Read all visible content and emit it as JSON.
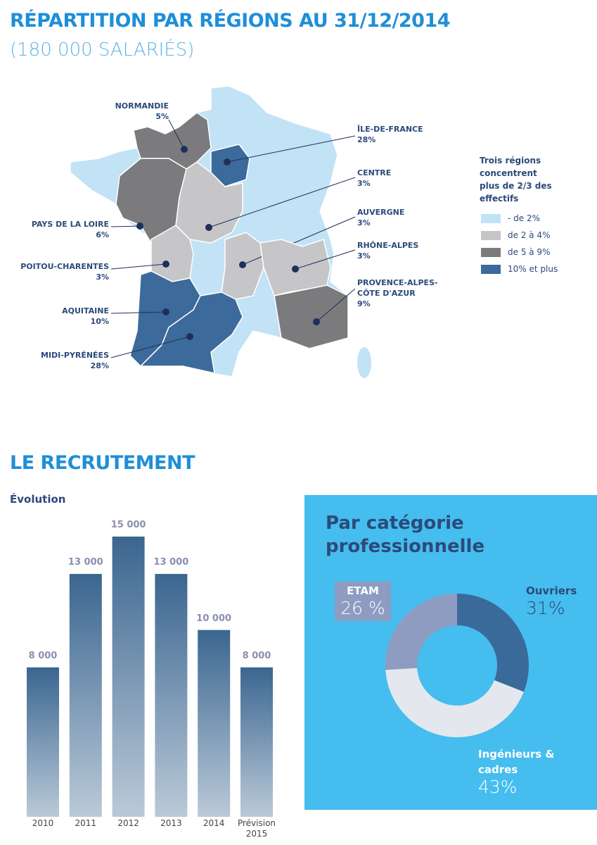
{
  "chart_data": [
    {
      "type": "map",
      "title": "RÉPARTITION PAR RÉGIONS AU 31/12/2014",
      "subtitle": "(180 000 SALARIÉS)",
      "categories": [
        "NORMANDIE",
        "ÎLE-DE-FRANCE",
        "CENTRE",
        "AUVERGNE",
        "RHÔNE-ALPES",
        "PROVENCE-ALPES-CÔTE D'AZUR",
        "PAYS DE LA LOIRE",
        "POITOU-CHARENTES",
        "AQUITAINE",
        "MIDI-PYRÉNÉES"
      ],
      "values": [
        5,
        28,
        3,
        3,
        3,
        9,
        6,
        3,
        10,
        28
      ],
      "value_labels": [
        "5%",
        "28%",
        "3%",
        "3%",
        "3%",
        "9%",
        "6%",
        "3%",
        "10%",
        "28%"
      ],
      "colors": [
        "#7b7b7d",
        "#3b6a9b",
        "#c6c6c8",
        "#c6c6c8",
        "#c6c6c8",
        "#7b7b7d",
        "#7b7b7d",
        "#c6c6c8",
        "#3b6a9b",
        "#3b6a9b"
      ],
      "base_color": "#c2e2f6",
      "legend_title": "Trois régions concentrent plus de 2/3 des effectifs",
      "legend": [
        {
          "label": "- de 2%",
          "color": "#c2e2f6"
        },
        {
          "label": "de 2 à 4%",
          "color": "#c6c6c8"
        },
        {
          "label": "de 5 à 9%",
          "color": "#7b7b7d"
        },
        {
          "label": "10% et plus",
          "color": "#3b6a9b"
        }
      ]
    },
    {
      "type": "bar",
      "section_title": "LE RECRUTEMENT",
      "title": "Évolution",
      "categories": [
        "2010",
        "2011",
        "2012",
        "2013",
        "2014",
        "Prévision 2015"
      ],
      "values": [
        8000,
        13000,
        15000,
        13000,
        10000,
        8000
      ],
      "value_labels": [
        "8 000",
        "13 000",
        "15 000",
        "13 000",
        "10 000",
        "8 000"
      ],
      "color": "#3b6690"
    },
    {
      "type": "pie",
      "title": "Par catégorie professionnelle",
      "categories": [
        "Ouvriers",
        "Ingénieurs & cadres",
        "ETAM"
      ],
      "values": [
        31,
        43,
        26
      ],
      "value_labels": [
        "31%",
        "43%",
        "26 %"
      ],
      "colors": [
        "#3a6a9a",
        "#e4e8ee",
        "#8e9cc2"
      ]
    }
  ]
}
